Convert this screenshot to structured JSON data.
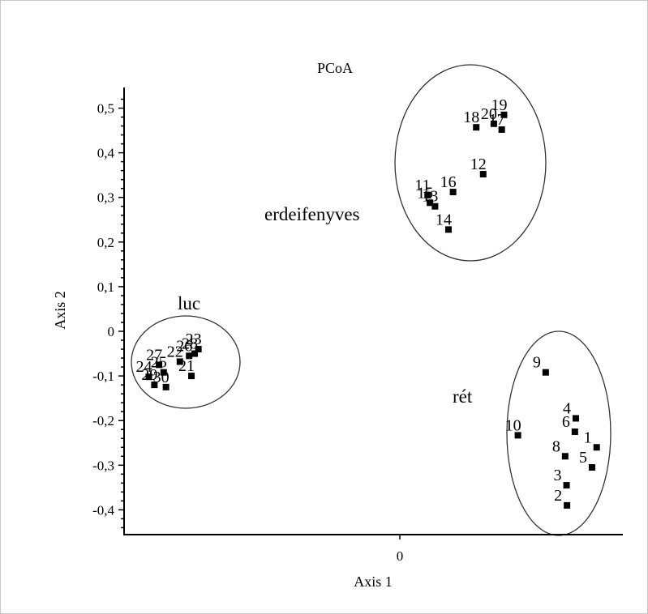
{
  "chart_data": {
    "type": "scatter",
    "title": "PCoA",
    "xlabel": "Axis 1",
    "ylabel": "Axis 2",
    "xlim": [
      -0.6,
      0.48
    ],
    "ylim": [
      -0.45,
      0.54
    ],
    "x_ticks": [
      {
        "value": 0,
        "label": "0"
      }
    ],
    "y_ticks": [
      {
        "value": 0.5,
        "label": "0,5"
      },
      {
        "value": 0.4,
        "label": "0,4"
      },
      {
        "value": 0.3,
        "label": "0,3"
      },
      {
        "value": 0.2,
        "label": "0,2"
      },
      {
        "value": 0.1,
        "label": "0,1"
      },
      {
        "value": 0,
        "label": "0"
      },
      {
        "value": -0.1,
        "label": "-0,1"
      },
      {
        "value": -0.2,
        "label": "-0,2"
      },
      {
        "value": -0.3,
        "label": "-0,3"
      },
      {
        "value": -0.4,
        "label": "-0,4"
      }
    ],
    "grid": false,
    "groups": [
      "erdeifenyves",
      "luc",
      "rét"
    ],
    "points": [
      {
        "label": "1",
        "x": 0.425,
        "y": -0.26,
        "group": "rét"
      },
      {
        "label": "2",
        "x": 0.361,
        "y": -0.39,
        "group": "rét"
      },
      {
        "label": "3",
        "x": 0.36,
        "y": -0.345,
        "group": "rét"
      },
      {
        "label": "4",
        "x": 0.38,
        "y": -0.195,
        "group": "rét"
      },
      {
        "label": "5",
        "x": 0.415,
        "y": -0.305,
        "group": "rét"
      },
      {
        "label": "6",
        "x": 0.378,
        "y": -0.225,
        "group": "rét"
      },
      {
        "label": "8",
        "x": 0.357,
        "y": -0.28,
        "group": "rét"
      },
      {
        "label": "9",
        "x": 0.315,
        "y": -0.092,
        "group": "rét"
      },
      {
        "label": "10",
        "x": 0.255,
        "y": -0.233,
        "group": "rét"
      },
      {
        "label": "11",
        "x": 0.06,
        "y": 0.305,
        "group": "erdeifenyves"
      },
      {
        "label": "13",
        "x": 0.076,
        "y": 0.28,
        "group": "erdeifenyves"
      },
      {
        "label": "14",
        "x": 0.105,
        "y": 0.228,
        "group": "erdeifenyves"
      },
      {
        "label": "15",
        "x": 0.065,
        "y": 0.288,
        "group": "erdeifenyves"
      },
      {
        "label": "16",
        "x": 0.115,
        "y": 0.312,
        "group": "erdeifenyves"
      },
      {
        "label": "12",
        "x": 0.18,
        "y": 0.352,
        "group": "erdeifenyves"
      },
      {
        "label": "17",
        "x": 0.22,
        "y": 0.452,
        "group": "erdeifenyves"
      },
      {
        "label": "18",
        "x": 0.165,
        "y": 0.457,
        "group": "erdeifenyves"
      },
      {
        "label": "19",
        "x": 0.225,
        "y": 0.485,
        "group": "erdeifenyves"
      },
      {
        "label": "20",
        "x": 0.203,
        "y": 0.465,
        "group": "erdeifenyves"
      },
      {
        "label": "21",
        "x": -0.45,
        "y": -0.1,
        "group": "luc"
      },
      {
        "label": "22",
        "x": -0.475,
        "y": -0.068,
        "group": "luc"
      },
      {
        "label": "23",
        "x": -0.435,
        "y": -0.04,
        "group": "luc"
      },
      {
        "label": "24",
        "x": -0.542,
        "y": -0.102,
        "group": "luc"
      },
      {
        "label": "25",
        "x": -0.51,
        "y": -0.092,
        "group": "luc"
      },
      {
        "label": "26",
        "x": -0.455,
        "y": -0.055,
        "group": "luc"
      },
      {
        "label": "27",
        "x": -0.52,
        "y": -0.075,
        "group": "luc"
      },
      {
        "label": "28",
        "x": -0.443,
        "y": -0.05,
        "group": "luc"
      },
      {
        "label": "29",
        "x": -0.53,
        "y": -0.12,
        "group": "luc"
      },
      {
        "label": "30",
        "x": -0.505,
        "y": -0.125,
        "group": "luc"
      }
    ]
  }
}
